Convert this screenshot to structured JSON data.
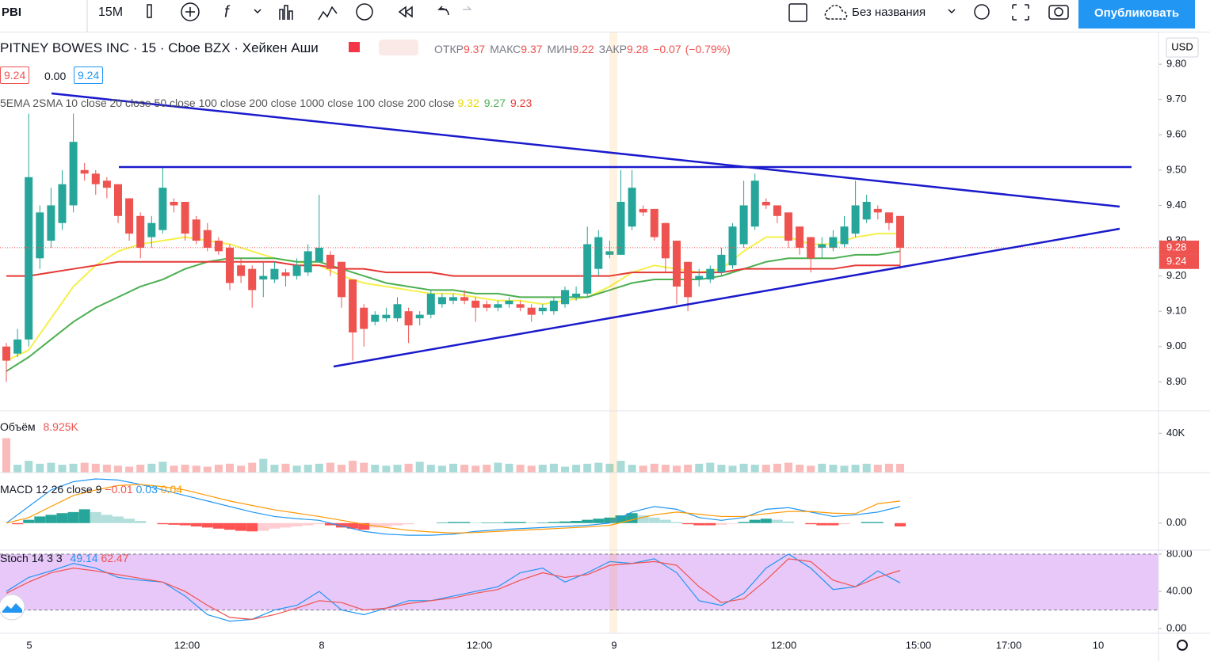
{
  "toolbar": {
    "symbol": "PBI",
    "interval": "15M",
    "layout_name": "Без названия",
    "publish": "Опубликовать"
  },
  "chart_data": {
    "type": "candlestick",
    "title": "PITNEY BOWES INC · 15 · Cboe BZX · Хейкен Аши",
    "ohlc_labels": [
      "ОТКР",
      "МАКС",
      "МИН",
      "ЗАКР"
    ],
    "change": {
      "value": -0.07,
      "label": "−0.07"
    },
    "change_pct": {
      "value": -0.79,
      "label": "(−0.79%)"
    },
    "quote": {
      "bid": 9.24,
      "spread": {
        "value": 0,
        "label": "0.00"
      },
      "ask": 9.24
    },
    "currency": "USD",
    "colors": {
      "up": "#26a69a",
      "down": "#ef5350"
    },
    "candles": [
      {
        "o": 9.0,
        "h": 9.01,
        "l": 8.9,
        "c": 8.96
      },
      {
        "o": 8.98,
        "h": 9.05,
        "l": 8.97,
        "c": 9.02
      },
      {
        "o": 9.02,
        "h": 9.66,
        "l": 9.0,
        "c": 9.48
      },
      {
        "o": 9.25,
        "h": 9.4,
        "l": 9.22,
        "c": 9.38
      },
      {
        "o": 9.3,
        "h": 9.45,
        "l": 9.28,
        "c": 9.4
      },
      {
        "o": 9.35,
        "h": 9.5,
        "l": 9.33,
        "c": 9.46
      },
      {
        "o": 9.4,
        "h": 9.66,
        "l": 9.38,
        "c": 9.58
      },
      {
        "o": 9.5,
        "h": 9.52,
        "l": 9.47,
        "c": 9.49
      },
      {
        "o": 9.49,
        "h": 9.5,
        "l": 9.43,
        "c": 9.46
      },
      {
        "o": 9.47,
        "h": 9.48,
        "l": 9.42,
        "c": 9.45
      },
      {
        "o": 9.46,
        "h": 9.46,
        "l": 9.35,
        "c": 9.37
      },
      {
        "o": 9.42,
        "h": 9.42,
        "l": 9.3,
        "c": 9.32
      },
      {
        "o": 9.37,
        "h": 9.38,
        "l": 9.25,
        "c": 9.28
      },
      {
        "o": 9.31,
        "h": 9.37,
        "l": 9.28,
        "c": 9.35
      },
      {
        "o": 9.33,
        "h": 9.51,
        "l": 9.32,
        "c": 9.45
      },
      {
        "o": 9.41,
        "h": 9.42,
        "l": 9.38,
        "c": 9.4
      },
      {
        "o": 9.41,
        "h": 9.41,
        "l": 9.3,
        "c": 9.32
      },
      {
        "o": 9.36,
        "h": 9.37,
        "l": 9.29,
        "c": 9.3
      },
      {
        "o": 9.33,
        "h": 9.35,
        "l": 9.27,
        "c": 9.28
      },
      {
        "o": 9.3,
        "h": 9.31,
        "l": 9.26,
        "c": 9.27
      },
      {
        "o": 9.28,
        "h": 9.29,
        "l": 9.16,
        "c": 9.18
      },
      {
        "o": 9.23,
        "h": 9.25,
        "l": 9.18,
        "c": 9.2
      },
      {
        "o": 9.22,
        "h": 9.23,
        "l": 9.11,
        "c": 9.16
      },
      {
        "o": 9.19,
        "h": 9.24,
        "l": 9.14,
        "c": 9.2
      },
      {
        "o": 9.19,
        "h": 9.24,
        "l": 9.18,
        "c": 9.22
      },
      {
        "o": 9.21,
        "h": 9.22,
        "l": 9.17,
        "c": 9.2
      },
      {
        "o": 9.2,
        "h": 9.25,
        "l": 9.19,
        "c": 9.23
      },
      {
        "o": 9.21,
        "h": 9.29,
        "l": 9.2,
        "c": 9.27
      },
      {
        "o": 9.24,
        "h": 9.43,
        "l": 9.24,
        "c": 9.28
      },
      {
        "o": 9.26,
        "h": 9.27,
        "l": 9.2,
        "c": 9.22
      },
      {
        "o": 9.24,
        "h": 9.24,
        "l": 9.11,
        "c": 9.14
      },
      {
        "o": 9.19,
        "h": 9.19,
        "l": 8.96,
        "c": 9.04
      },
      {
        "o": 9.11,
        "h": 9.12,
        "l": 9.0,
        "c": 9.05
      },
      {
        "o": 9.07,
        "h": 9.1,
        "l": 9.06,
        "c": 9.09
      },
      {
        "o": 9.08,
        "h": 9.11,
        "l": 9.07,
        "c": 9.09
      },
      {
        "o": 9.08,
        "h": 9.14,
        "l": 9.07,
        "c": 9.12
      },
      {
        "o": 9.1,
        "h": 9.11,
        "l": 9.01,
        "c": 9.06
      },
      {
        "o": 9.08,
        "h": 9.1,
        "l": 9.06,
        "c": 9.09
      },
      {
        "o": 9.09,
        "h": 9.16,
        "l": 9.08,
        "c": 9.15
      },
      {
        "o": 9.12,
        "h": 9.15,
        "l": 9.11,
        "c": 9.14
      },
      {
        "o": 9.13,
        "h": 9.15,
        "l": 9.12,
        "c": 9.14
      },
      {
        "o": 9.14,
        "h": 9.16,
        "l": 9.12,
        "c": 9.13
      },
      {
        "o": 9.13,
        "h": 9.14,
        "l": 9.07,
        "c": 9.11
      },
      {
        "o": 9.12,
        "h": 9.13,
        "l": 9.1,
        "c": 9.11
      },
      {
        "o": 9.11,
        "h": 9.13,
        "l": 9.1,
        "c": 9.12
      },
      {
        "o": 9.12,
        "h": 9.14,
        "l": 9.11,
        "c": 9.13
      },
      {
        "o": 9.12,
        "h": 9.13,
        "l": 9.1,
        "c": 9.11
      },
      {
        "o": 9.11,
        "h": 9.12,
        "l": 9.07,
        "c": 9.09
      },
      {
        "o": 9.1,
        "h": 9.12,
        "l": 9.09,
        "c": 9.11
      },
      {
        "o": 9.1,
        "h": 9.14,
        "l": 9.09,
        "c": 9.13
      },
      {
        "o": 9.12,
        "h": 9.17,
        "l": 9.11,
        "c": 9.16
      },
      {
        "o": 9.14,
        "h": 9.17,
        "l": 9.13,
        "c": 9.15
      },
      {
        "o": 9.15,
        "h": 9.34,
        "l": 9.14,
        "c": 9.29
      },
      {
        "o": 9.22,
        "h": 9.33,
        "l": 9.2,
        "c": 9.31
      },
      {
        "o": 9.26,
        "h": 9.3,
        "l": 9.25,
        "c": 9.27
      },
      {
        "o": 9.26,
        "h": 9.5,
        "l": 9.26,
        "c": 9.41
      },
      {
        "o": 9.34,
        "h": 9.5,
        "l": 9.33,
        "c": 9.45
      },
      {
        "o": 9.39,
        "h": 9.4,
        "l": 9.37,
        "c": 9.38
      },
      {
        "o": 9.39,
        "h": 9.39,
        "l": 9.3,
        "c": 9.31
      },
      {
        "o": 9.35,
        "h": 9.35,
        "l": 9.21,
        "c": 9.25
      },
      {
        "o": 9.3,
        "h": 9.3,
        "l": 9.12,
        "c": 9.17
      },
      {
        "o": 9.24,
        "h": 9.24,
        "l": 9.1,
        "c": 9.14
      },
      {
        "o": 9.19,
        "h": 9.22,
        "l": 9.17,
        "c": 9.2
      },
      {
        "o": 9.19,
        "h": 9.23,
        "l": 9.18,
        "c": 9.22
      },
      {
        "o": 9.21,
        "h": 9.28,
        "l": 9.2,
        "c": 9.26
      },
      {
        "o": 9.23,
        "h": 9.35,
        "l": 9.22,
        "c": 9.34
      },
      {
        "o": 9.29,
        "h": 9.47,
        "l": 9.28,
        "c": 9.4
      },
      {
        "o": 9.34,
        "h": 9.49,
        "l": 9.33,
        "c": 9.47
      },
      {
        "o": 9.41,
        "h": 9.42,
        "l": 9.39,
        "c": 9.4
      },
      {
        "o": 9.4,
        "h": 9.4,
        "l": 9.35,
        "c": 9.37
      },
      {
        "o": 9.38,
        "h": 9.38,
        "l": 9.28,
        "c": 9.3
      },
      {
        "o": 9.34,
        "h": 9.34,
        "l": 9.26,
        "c": 9.28
      },
      {
        "o": 9.31,
        "h": 9.31,
        "l": 9.21,
        "c": 9.25
      },
      {
        "o": 9.28,
        "h": 9.31,
        "l": 9.25,
        "c": 9.29
      },
      {
        "o": 9.28,
        "h": 9.33,
        "l": 9.27,
        "c": 9.31
      },
      {
        "o": 9.29,
        "h": 9.37,
        "l": 9.28,
        "c": 9.34
      },
      {
        "o": 9.32,
        "h": 9.47,
        "l": 9.31,
        "c": 9.4
      },
      {
        "o": 9.36,
        "h": 9.43,
        "l": 9.35,
        "c": 9.41
      },
      {
        "o": 9.39,
        "h": 9.4,
        "l": 9.36,
        "c": 9.38
      },
      {
        "o": 9.38,
        "h": 9.38,
        "l": 9.33,
        "c": 9.35
      },
      {
        "o": 9.37,
        "h": 9.37,
        "l": 9.22,
        "c": 9.28
      }
    ],
    "ylim": [
      8.82,
      9.89
    ],
    "yticks": [
      {
        "value": 9.8,
        "label": "9.80"
      },
      {
        "value": 9.7,
        "label": "9.70"
      },
      {
        "value": 9.6,
        "label": "9.60"
      },
      {
        "value": 9.5,
        "label": "9.50"
      },
      {
        "value": 9.4,
        "label": "9.40"
      },
      {
        "value": 9.3,
        "label": "9.30"
      },
      {
        "value": 9.2,
        "label": "9.20"
      },
      {
        "value": 9.1,
        "label": "9.10"
      },
      {
        "value": 9.0,
        "label": "9.00"
      },
      {
        "value": 8.9,
        "label": "8.90"
      }
    ],
    "xtick_labels": [
      "5",
      "12:00",
      "8",
      "12:00",
      "9",
      "12:00",
      "15:00",
      "17:00",
      "10"
    ],
    "ma_title": "5EMA 2SMA 10 close 20 close 50 close 100 close 200 close 1000 close 100 close 200 close",
    "ma_series": [
      {
        "color": "#f5f04a",
        "values": [
          8.96,
          8.99,
          9.08,
          9.17,
          9.23,
          9.27,
          9.29,
          9.3,
          9.31,
          9.3,
          9.29,
          9.27,
          9.25,
          9.24,
          9.23,
          9.2,
          9.18,
          9.17,
          9.16,
          9.15,
          9.15,
          9.14,
          9.13,
          9.13,
          9.12,
          9.13,
          9.14,
          9.17,
          9.21,
          9.23,
          9.22,
          9.21,
          9.22,
          9.27,
          9.31,
          9.31,
          9.29,
          9.29,
          9.31,
          9.32,
          9.32
        ]
      },
      {
        "color": "#4caf50",
        "values": [
          8.93,
          8.97,
          9.02,
          9.07,
          9.11,
          9.14,
          9.17,
          9.19,
          9.22,
          9.24,
          9.25,
          9.25,
          9.25,
          9.24,
          9.24,
          9.22,
          9.2,
          9.18,
          9.17,
          9.16,
          9.16,
          9.15,
          9.15,
          9.14,
          9.14,
          9.14,
          9.14,
          9.16,
          9.18,
          9.19,
          9.19,
          9.19,
          9.2,
          9.22,
          9.24,
          9.25,
          9.25,
          9.25,
          9.26,
          9.26,
          9.27
        ]
      },
      {
        "color": "#e53935",
        "values": [
          9.2,
          9.2,
          9.21,
          9.22,
          9.23,
          9.24,
          9.24,
          9.24,
          9.24,
          9.24,
          9.24,
          9.24,
          9.24,
          9.23,
          9.23,
          9.22,
          9.22,
          9.21,
          9.21,
          9.21,
          9.2,
          9.2,
          9.2,
          9.2,
          9.2,
          9.2,
          9.2,
          9.2,
          9.21,
          9.21,
          9.21,
          9.21,
          9.21,
          9.22,
          9.22,
          9.22,
          9.22,
          9.22,
          9.23,
          9.23,
          9.23
        ]
      }
    ],
    "volume": {
      "title": "Объём",
      "legend_value": {
        "value": 8925,
        "label": "8.925K"
      },
      "values": [
        35000,
        8000,
        12000,
        9000,
        10000,
        8000,
        9000,
        10000,
        9000,
        8000,
        7000,
        6000,
        8000,
        9000,
        11000,
        7000,
        8000,
        7000,
        6000,
        8000,
        9000,
        7000,
        10000,
        14000,
        8000,
        9000,
        7000,
        8000,
        9000,
        10000,
        8000,
        12000,
        10000,
        8000,
        7000,
        8000,
        9000,
        11000,
        8000,
        7000,
        9000,
        8000,
        7000,
        8000,
        10000,
        9000,
        8000,
        7000,
        8000,
        9000,
        6000,
        8000,
        9000,
        10000,
        9000,
        12000,
        8000,
        7000,
        9000,
        8000,
        7000,
        8000,
        9000,
        10000,
        8000,
        7000,
        9000,
        8000,
        8000,
        9000,
        10000,
        8000,
        7000,
        9000,
        8000,
        7000,
        8000,
        9000,
        8000,
        9000,
        8925
      ],
      "ylim": [
        0,
        62000
      ],
      "yticks": [
        {
          "value": 40000,
          "label": "40K"
        }
      ]
    },
    "macd": {
      "title": "MACD 12 26 close 9",
      "legend_values": [
        {
          "value": -0.01,
          "label": "−0.01"
        },
        0.03,
        0.04
      ],
      "colors": {
        "macd": "#2196f3",
        "signal": "#ff9800",
        "up": "#26a69a",
        "up_fade": "#b2dfdb",
        "down": "#ff5252",
        "down_fade": "#ffcdd2"
      },
      "hist": [
        0.0,
        -0.002,
        0.006,
        0.012,
        0.015,
        0.018,
        0.02,
        0.025,
        0.02,
        0.015,
        0.012,
        0.008,
        0.004,
        0.0,
        -0.002,
        -0.003,
        -0.004,
        -0.006,
        -0.008,
        -0.01,
        -0.012,
        -0.014,
        -0.015,
        -0.014,
        -0.01,
        -0.008,
        -0.006,
        -0.004,
        -0.002,
        -0.004,
        -0.008,
        -0.01,
        -0.012,
        -0.008,
        -0.006,
        -0.004,
        -0.002,
        0.0,
        0.0,
        0.001,
        0.002,
        0.002,
        0.001,
        0.001,
        0.001,
        0.002,
        0.002,
        0.001,
        0.001,
        0.002,
        0.003,
        0.004,
        0.006,
        0.008,
        0.01,
        0.014,
        0.018,
        0.014,
        0.01,
        0.006,
        0.002,
        -0.002,
        -0.004,
        -0.004,
        -0.003,
        -0.001,
        0.002,
        0.006,
        0.008,
        0.006,
        0.003,
        0.0,
        -0.002,
        -0.004,
        -0.004,
        -0.002,
        0.0,
        0.002,
        0.002,
        0.0,
        -0.006
      ],
      "macd": [
        0.0,
        0.03,
        0.06,
        0.075,
        0.08,
        0.078,
        0.07,
        0.06,
        0.05,
        0.04,
        0.03,
        0.02,
        0.012,
        0.008,
        0.005,
        -0.005,
        -0.015,
        -0.02,
        -0.022,
        -0.022,
        -0.02,
        -0.015,
        -0.012,
        -0.01,
        -0.008,
        -0.006,
        -0.004,
        0.0,
        0.02,
        0.03,
        0.025,
        0.01,
        0.005,
        0.01,
        0.025,
        0.028,
        0.02,
        0.012,
        0.015,
        0.02,
        0.03
      ],
      "signal": [
        0.0,
        0.01,
        0.03,
        0.05,
        0.06,
        0.068,
        0.07,
        0.066,
        0.06,
        0.05,
        0.04,
        0.032,
        0.024,
        0.018,
        0.012,
        0.005,
        -0.002,
        -0.008,
        -0.013,
        -0.016,
        -0.018,
        -0.017,
        -0.015,
        -0.013,
        -0.011,
        -0.009,
        -0.007,
        -0.004,
        0.006,
        0.015,
        0.02,
        0.016,
        0.012,
        0.012,
        0.017,
        0.021,
        0.021,
        0.018,
        0.017,
        0.035,
        0.04
      ],
      "ylim": [
        -0.049,
        0.09
      ],
      "yticks": [
        {
          "value": 0,
          "label": "0.00"
        }
      ]
    },
    "stoch": {
      "title": "Stoch 14 3 3",
      "colors": {
        "k": "#2196f3",
        "d": "#ef5350",
        "band": "#e8c8f8"
      },
      "k": [
        40,
        55,
        62,
        70,
        65,
        55,
        52,
        50,
        35,
        15,
        8,
        10,
        20,
        25,
        40,
        20,
        15,
        22,
        30,
        30,
        35,
        40,
        45,
        60,
        65,
        50,
        60,
        72,
        70,
        75,
        60,
        30,
        25,
        38,
        65,
        80,
        65,
        42,
        45,
        62,
        49.14
      ],
      "d": [
        38,
        50,
        60,
        65,
        62,
        58,
        54,
        50,
        40,
        25,
        12,
        10,
        15,
        22,
        30,
        28,
        20,
        22,
        27,
        30,
        33,
        38,
        42,
        52,
        60,
        55,
        58,
        68,
        70,
        72,
        68,
        45,
        28,
        32,
        52,
        75,
        72,
        52,
        45,
        55,
        62.47
      ],
      "band": [
        20,
        80
      ],
      "ylim": [
        -5,
        83.4
      ],
      "yticks": [
        {
          "value": 80,
          "label": "80.00"
        },
        {
          "value": 40,
          "label": "40.00"
        },
        {
          "value": 0,
          "label": "0.00"
        }
      ]
    }
  }
}
